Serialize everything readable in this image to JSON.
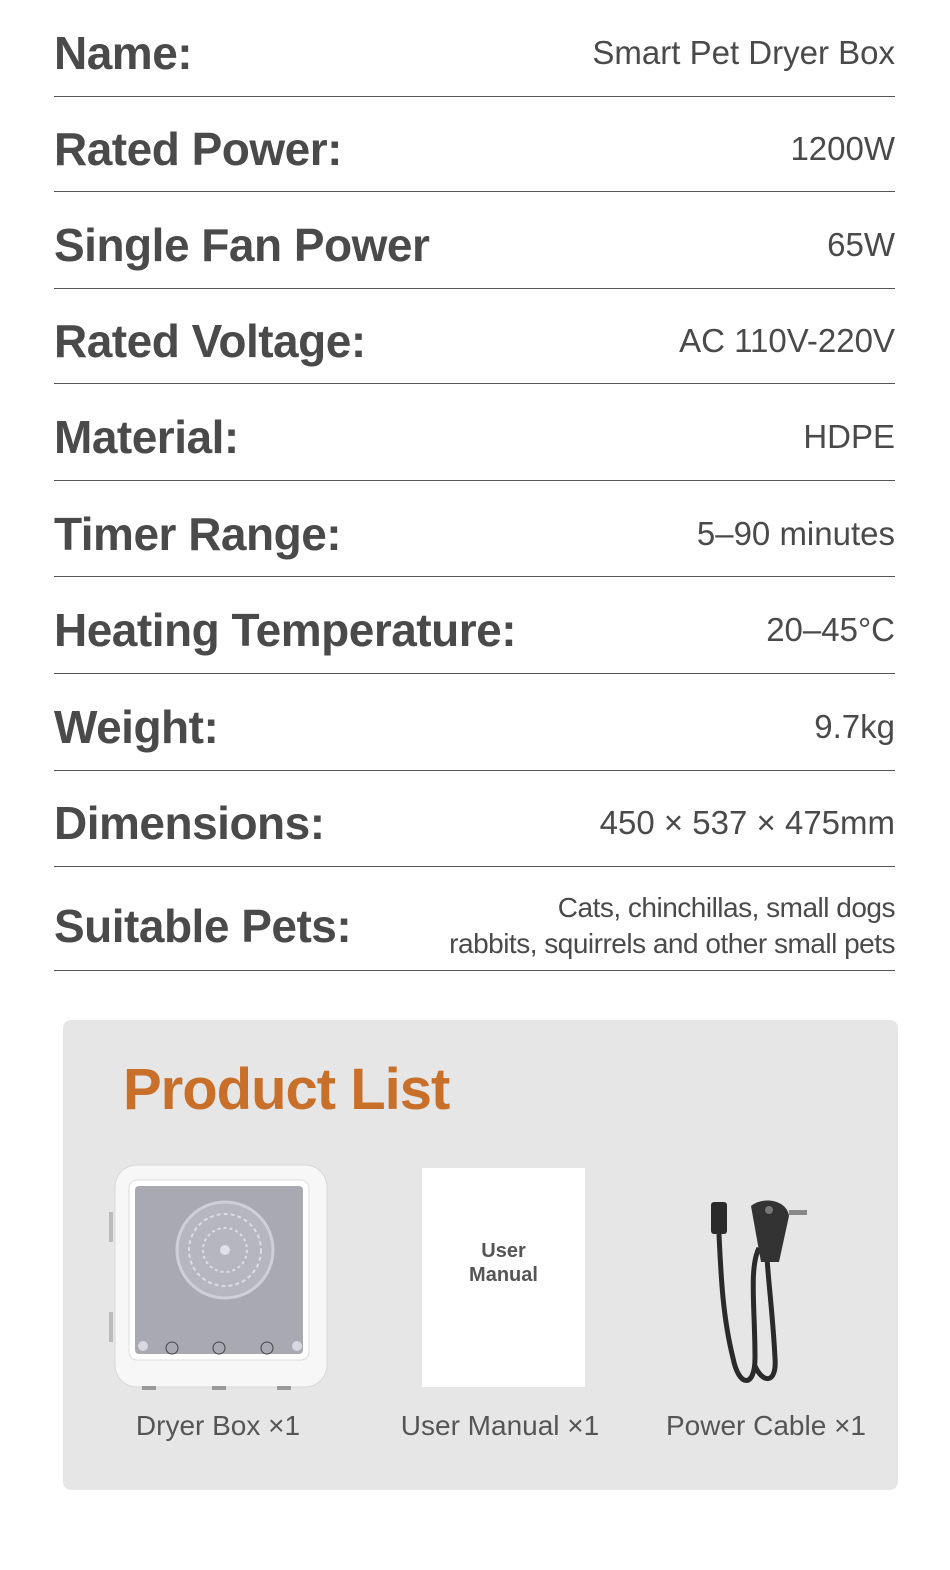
{
  "specs": [
    {
      "label": "Name:",
      "value": "Smart Pet Dryer Box"
    },
    {
      "label": "Rated Power:",
      "value": "1200W"
    },
    {
      "label": "Single Fan Power",
      "value": "65W"
    },
    {
      "label": "Rated Voltage:",
      "value": "AC 110V-220V"
    },
    {
      "label": "Material:",
      "value": "HDPE"
    },
    {
      "label": "Timer Range:",
      "value": "5–90 minutes"
    },
    {
      "label": "Heating Temperature:",
      "value": "20–45°C"
    },
    {
      "label": "Weight:",
      "value": "9.7kg"
    },
    {
      "label": "Dimensions:",
      "value": "450 × 537 × 475mm"
    },
    {
      "label": "Suitable Pets:",
      "value_line1": "Cats, chinchillas, small dogs",
      "value_line2": "rabbits, squirrels and other small pets"
    }
  ],
  "product_list": {
    "title": "Product List",
    "title_color": "#c8702a",
    "items": [
      {
        "label": "Dryer Box ×1",
        "icon": "dryer-box-image"
      },
      {
        "label": "User Manual ×1",
        "icon": "user-manual-image",
        "cover_text": "User\nManual"
      },
      {
        "label": "Power Cable ×1",
        "icon": "power-cable-image"
      }
    ]
  }
}
